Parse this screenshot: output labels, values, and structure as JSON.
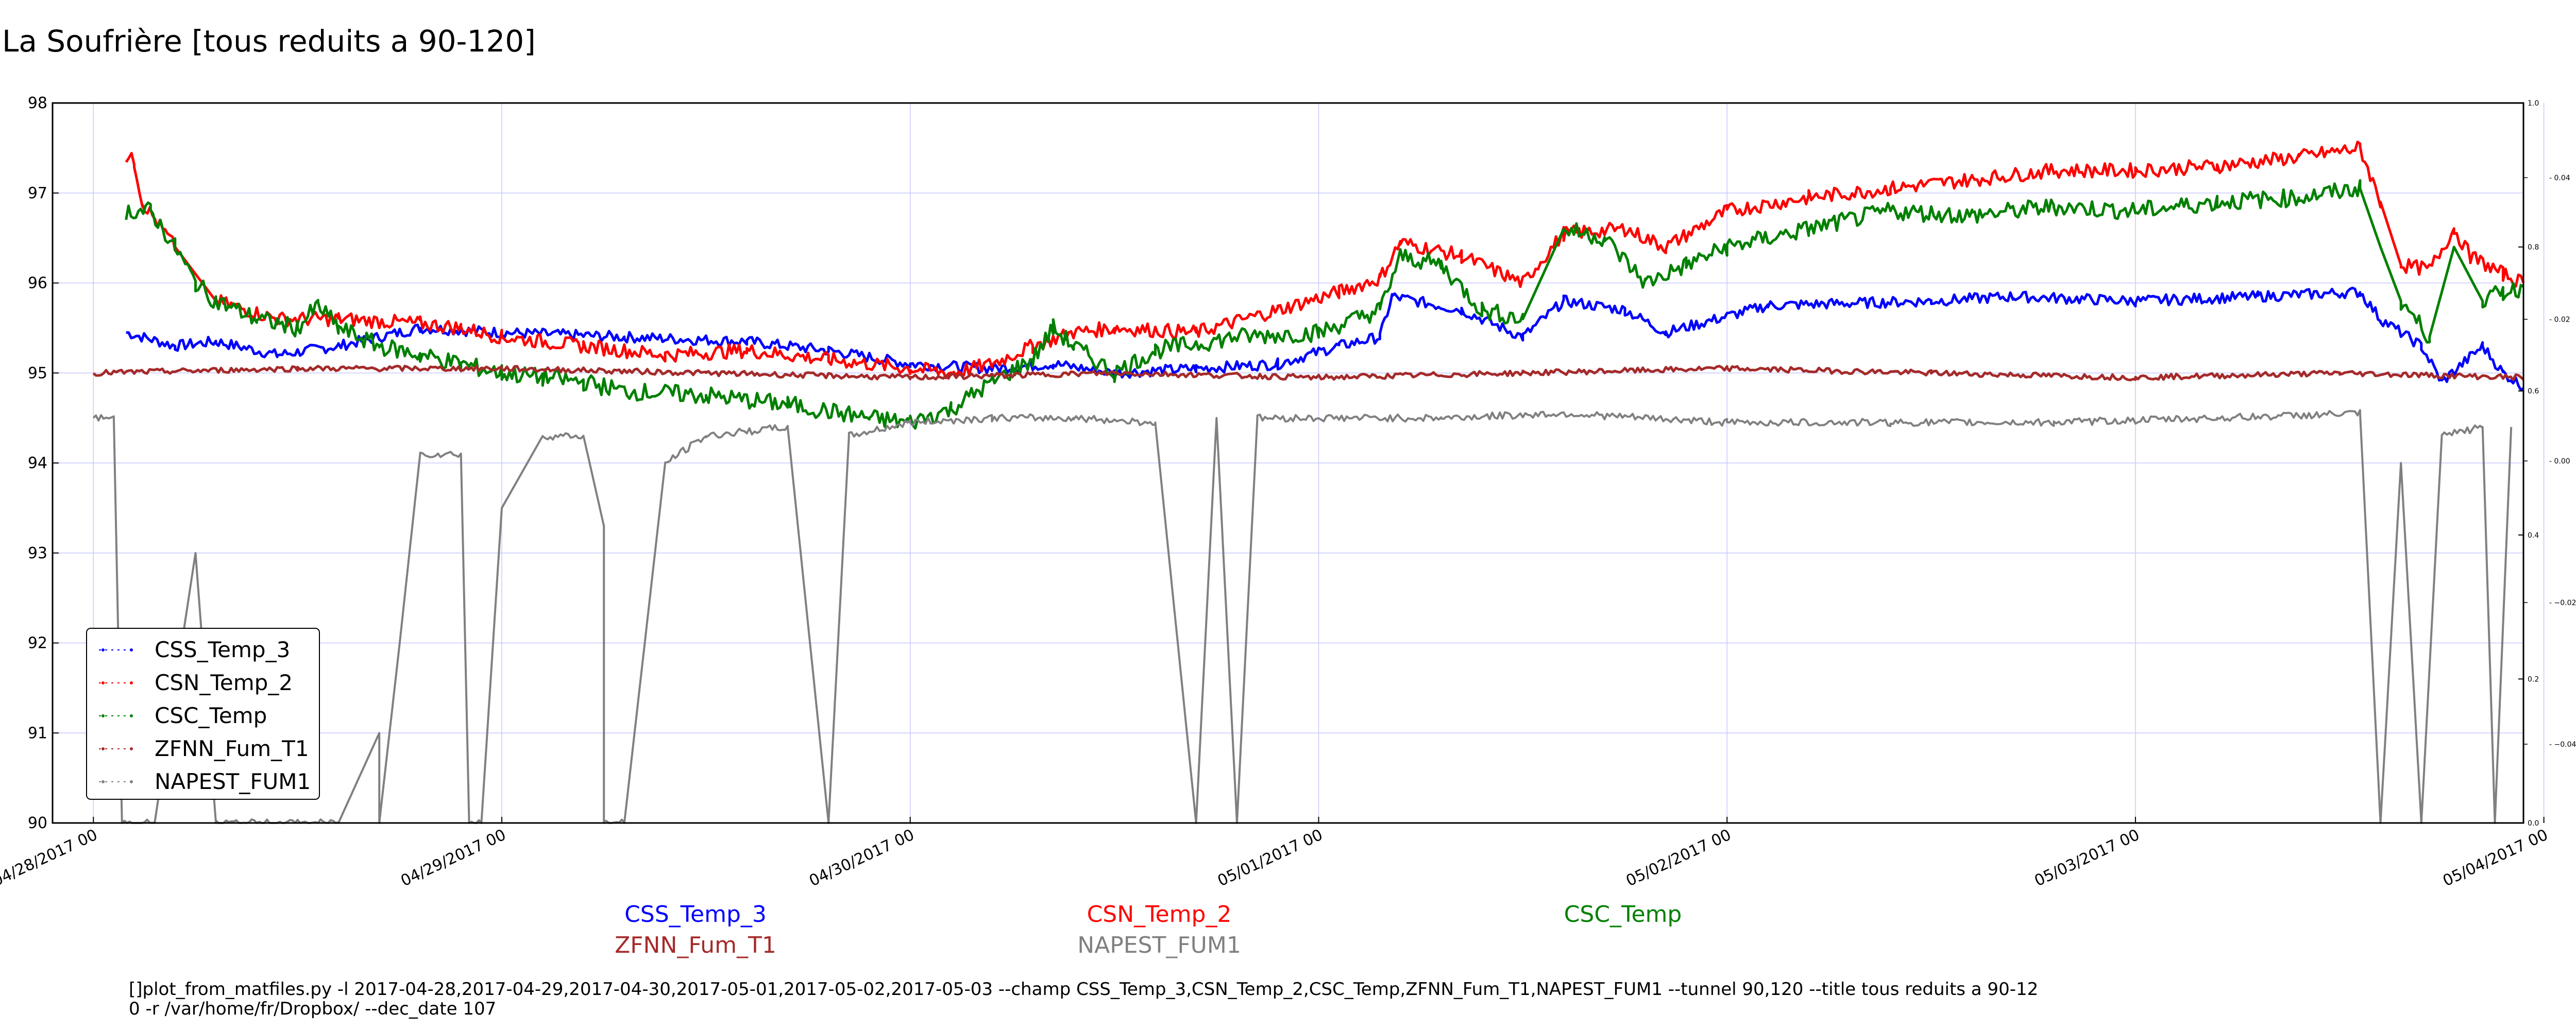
{
  "title": "La Soufrière [tous reduits a 90-120]",
  "command": {
    "line1": "[]plot_from_matfiles.py -l 2017-04-28,2017-04-29,2017-04-30,2017-05-01,2017-05-02,2017-05-03 --champ CSS_Temp_3,CSN_Temp_2,CSC_Temp,ZFNN_Fum_T1,NAPEST_FUM1 --tunnel 90,120 --title tous reduits a 90-12",
    "line2": "0 -r /var/home/fr/Dropbox/ --dec_date 107"
  },
  "chart_data": {
    "type": "line",
    "title": "La Soufrière [tous reduits a 90-120]",
    "xlabel": "",
    "ylabel": "",
    "xlim": [
      -0.1,
      5.95
    ],
    "ylim": [
      90,
      98
    ],
    "x_ticks": [
      {
        "x": 0,
        "label": "04/28/2017 00"
      },
      {
        "x": 1,
        "label": "04/29/2017 00"
      },
      {
        "x": 2,
        "label": "04/30/2017 00"
      },
      {
        "x": 3,
        "label": "05/01/2017 00"
      },
      {
        "x": 4,
        "label": "05/02/2017 00"
      },
      {
        "x": 5,
        "label": "05/03/2017 00"
      },
      {
        "x": 6,
        "label": "05/04/2017 00"
      }
    ],
    "y_ticks": [
      90,
      91,
      92,
      93,
      94,
      95,
      96,
      97,
      98
    ],
    "right_axis_outer_ticks": [
      "1.0",
      "0.8",
      "0.6",
      "0.4",
      "0.2",
      "0.0"
    ],
    "right_axis_inner_ticks": [
      "0.04",
      "0.02",
      "0.00",
      "−0.02",
      "−0.04"
    ],
    "grid": true,
    "legend_position": "lower-left",
    "series": [
      {
        "name": "CSS_Temp_3",
        "color": "#0000ff",
        "points": [
          [
            0.08,
            95.45
          ],
          [
            0.2,
            95.3
          ],
          [
            0.3,
            95.35
          ],
          [
            0.45,
            95.2
          ],
          [
            0.6,
            95.3
          ],
          [
            0.8,
            95.5
          ],
          [
            1.0,
            95.45
          ],
          [
            1.3,
            95.4
          ],
          [
            1.6,
            95.35
          ],
          [
            1.8,
            95.25
          ],
          [
            2.0,
            95.1
          ],
          [
            2.2,
            95.05
          ],
          [
            2.35,
            95.1
          ],
          [
            2.5,
            95.0
          ],
          [
            2.7,
            95.05
          ],
          [
            2.9,
            95.1
          ],
          [
            3.05,
            95.3
          ],
          [
            3.15,
            95.4
          ],
          [
            3.18,
            95.85
          ],
          [
            3.35,
            95.7
          ],
          [
            3.5,
            95.4
          ],
          [
            3.6,
            95.8
          ],
          [
            3.75,
            95.7
          ],
          [
            3.85,
            95.45
          ],
          [
            4.1,
            95.75
          ],
          [
            4.5,
            95.8
          ],
          [
            4.7,
            95.85
          ],
          [
            5.0,
            95.8
          ],
          [
            5.3,
            95.85
          ],
          [
            5.55,
            95.9
          ],
          [
            5.6,
            95.6
          ],
          [
            5.7,
            95.3
          ],
          [
            5.75,
            94.9
          ],
          [
            5.85,
            95.3
          ],
          [
            5.9,
            95.0
          ],
          [
            5.95,
            94.85
          ]
        ]
      },
      {
        "name": "CSN_Temp_2",
        "color": "#ff0000",
        "points": [
          [
            0.08,
            97.4
          ],
          [
            0.1,
            97.35
          ],
          [
            0.12,
            96.9
          ],
          [
            0.2,
            96.4
          ],
          [
            0.3,
            95.8
          ],
          [
            0.45,
            95.6
          ],
          [
            0.6,
            95.6
          ],
          [
            0.8,
            95.55
          ],
          [
            0.9,
            95.5
          ],
          [
            1.0,
            95.4
          ],
          [
            1.2,
            95.3
          ],
          [
            1.4,
            95.2
          ],
          [
            1.6,
            95.25
          ],
          [
            1.8,
            95.15
          ],
          [
            2.0,
            95.05
          ],
          [
            2.1,
            95.0
          ],
          [
            2.2,
            95.1
          ],
          [
            2.3,
            95.3
          ],
          [
            2.4,
            95.45
          ],
          [
            2.5,
            95.5
          ],
          [
            2.7,
            95.45
          ],
          [
            2.9,
            95.7
          ],
          [
            3.05,
            95.9
          ],
          [
            3.15,
            96.05
          ],
          [
            3.2,
            96.45
          ],
          [
            3.35,
            96.3
          ],
          [
            3.5,
            96.0
          ],
          [
            3.6,
            96.55
          ],
          [
            3.75,
            96.6
          ],
          [
            3.85,
            96.4
          ],
          [
            4.0,
            96.8
          ],
          [
            4.2,
            96.95
          ],
          [
            4.4,
            97.05
          ],
          [
            4.6,
            97.15
          ],
          [
            4.8,
            97.25
          ],
          [
            5.0,
            97.25
          ],
          [
            5.2,
            97.3
          ],
          [
            5.4,
            97.4
          ],
          [
            5.55,
            97.5
          ],
          [
            5.6,
            96.9
          ],
          [
            5.65,
            96.2
          ],
          [
            5.72,
            96.15
          ],
          [
            5.78,
            96.6
          ],
          [
            5.82,
            96.3
          ],
          [
            5.9,
            96.1
          ],
          [
            5.95,
            96.0
          ]
        ]
      },
      {
        "name": "CSC_Temp",
        "color": "#008000",
        "points": [
          [
            0.08,
            96.8
          ],
          [
            0.14,
            96.8
          ],
          [
            0.2,
            96.4
          ],
          [
            0.25,
            96.0
          ],
          [
            0.3,
            95.8
          ],
          [
            0.4,
            95.6
          ],
          [
            0.5,
            95.5
          ],
          [
            0.55,
            95.75
          ],
          [
            0.6,
            95.5
          ],
          [
            0.7,
            95.3
          ],
          [
            0.8,
            95.2
          ],
          [
            0.9,
            95.1
          ],
          [
            1.0,
            95.0
          ],
          [
            1.1,
            94.95
          ],
          [
            1.2,
            94.9
          ],
          [
            1.3,
            94.8
          ],
          [
            1.5,
            94.75
          ],
          [
            1.7,
            94.65
          ],
          [
            1.9,
            94.5
          ],
          [
            2.0,
            94.45
          ],
          [
            2.1,
            94.6
          ],
          [
            2.2,
            94.9
          ],
          [
            2.3,
            95.15
          ],
          [
            2.35,
            95.5
          ],
          [
            2.4,
            95.3
          ],
          [
            2.5,
            95.0
          ],
          [
            2.6,
            95.25
          ],
          [
            2.8,
            95.4
          ],
          [
            3.0,
            95.45
          ],
          [
            3.15,
            95.7
          ],
          [
            3.2,
            96.3
          ],
          [
            3.3,
            96.2
          ],
          [
            3.4,
            95.7
          ],
          [
            3.5,
            95.6
          ],
          [
            3.6,
            96.6
          ],
          [
            3.7,
            96.5
          ],
          [
            3.8,
            96.0
          ],
          [
            3.9,
            96.2
          ],
          [
            4.0,
            96.4
          ],
          [
            4.2,
            96.6
          ],
          [
            4.4,
            96.8
          ],
          [
            4.6,
            96.75
          ],
          [
            4.8,
            96.85
          ],
          [
            5.0,
            96.8
          ],
          [
            5.2,
            96.9
          ],
          [
            5.4,
            96.95
          ],
          [
            5.55,
            97.05
          ],
          [
            5.6,
            96.4
          ],
          [
            5.65,
            95.8
          ],
          [
            5.72,
            95.4
          ],
          [
            5.78,
            96.4
          ],
          [
            5.85,
            95.8
          ],
          [
            5.9,
            95.9
          ],
          [
            5.95,
            95.95
          ]
        ]
      },
      {
        "name": "ZFNN_Fum_T1",
        "color": "#a52a2a",
        "points": [
          [
            0.0,
            95.0
          ],
          [
            0.5,
            95.05
          ],
          [
            1.0,
            95.05
          ],
          [
            1.5,
            95.0
          ],
          [
            2.0,
            94.95
          ],
          [
            2.5,
            95.0
          ],
          [
            3.0,
            94.95
          ],
          [
            3.5,
            95.0
          ],
          [
            4.0,
            95.05
          ],
          [
            4.5,
            95.0
          ],
          [
            5.0,
            94.95
          ],
          [
            5.5,
            95.0
          ],
          [
            5.95,
            94.95
          ]
        ]
      },
      {
        "name": "NAPEST_FUM1",
        "color": "#808080",
        "points": [
          [
            0.0,
            94.5
          ],
          [
            0.05,
            94.5
          ],
          [
            0.07,
            90.0
          ],
          [
            0.15,
            90.0
          ],
          [
            0.25,
            93.0
          ],
          [
            0.3,
            90.0
          ],
          [
            0.6,
            90.0
          ],
          [
            0.7,
            91.0
          ],
          [
            0.7,
            90.0
          ],
          [
            0.7,
            90.0
          ],
          [
            0.75,
            92.0
          ],
          [
            0.8,
            94.1
          ],
          [
            0.9,
            94.1
          ],
          [
            0.92,
            90.0
          ],
          [
            0.95,
            90.0
          ],
          [
            1.0,
            93.5
          ],
          [
            1.1,
            94.3
          ],
          [
            1.2,
            94.3
          ],
          [
            1.25,
            93.3
          ],
          [
            1.25,
            90.0
          ],
          [
            1.3,
            90.0
          ],
          [
            1.4,
            94.0
          ],
          [
            1.5,
            94.3
          ],
          [
            1.7,
            94.4
          ],
          [
            1.8,
            90.0
          ],
          [
            1.85,
            94.3
          ],
          [
            2.0,
            94.45
          ],
          [
            2.2,
            94.5
          ],
          [
            2.4,
            94.5
          ],
          [
            2.6,
            94.45
          ],
          [
            2.7,
            90.0
          ],
          [
            2.75,
            94.5
          ],
          [
            2.8,
            90.0
          ],
          [
            2.85,
            94.5
          ],
          [
            3.0,
            94.5
          ],
          [
            3.3,
            94.5
          ],
          [
            3.6,
            94.55
          ],
          [
            4.0,
            94.45
          ],
          [
            4.4,
            94.45
          ],
          [
            4.8,
            94.45
          ],
          [
            5.2,
            94.5
          ],
          [
            5.55,
            94.55
          ],
          [
            5.6,
            90.0
          ],
          [
            5.65,
            94.0
          ],
          [
            5.7,
            90.0
          ],
          [
            5.75,
            94.3
          ],
          [
            5.85,
            94.4
          ],
          [
            5.88,
            90.0
          ],
          [
            5.92,
            94.4
          ]
        ]
      }
    ],
    "legend": [
      "CSS_Temp_3",
      "CSN_Temp_2",
      "CSC_Temp",
      "ZFNN_Fum_T1",
      "NAPEST_FUM1"
    ]
  }
}
